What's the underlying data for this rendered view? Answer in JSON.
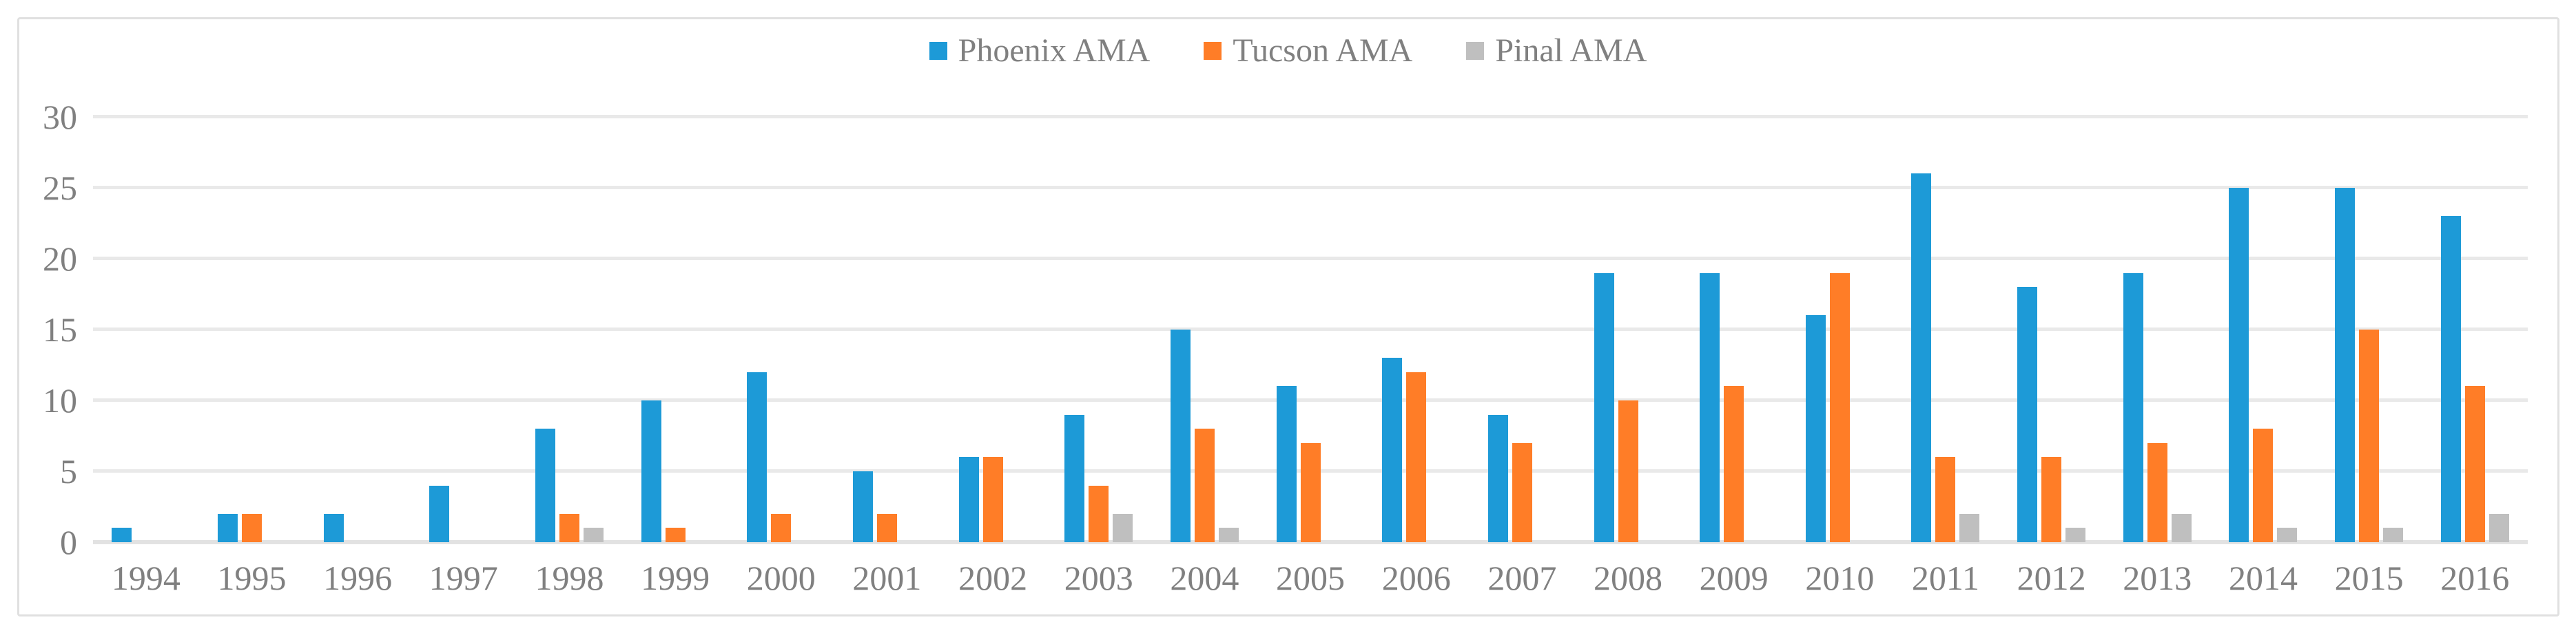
{
  "style": {
    "background": "#ffffff",
    "frame_border_color": "#e0e0e0",
    "gridline_color": "#e9e9e9",
    "axis_line_color": "#e2e2e2",
    "text_color": "#808080"
  },
  "legend": {
    "position": "top-center",
    "items": [
      {
        "label": "Phoenix AMA",
        "color": "#1d9ad7"
      },
      {
        "label": "Tucson AMA",
        "color": "#ff7d27"
      },
      {
        "label": "Pinal AMA",
        "color": "#bfbfbf"
      }
    ]
  },
  "chart_data": {
    "type": "bar",
    "title": "",
    "xlabel": "",
    "ylabel": "",
    "grid": "horizontal",
    "legend_position": "top-center",
    "ylim": [
      0,
      30
    ],
    "yticks": [
      0,
      5,
      10,
      15,
      20,
      25,
      30
    ],
    "categories": [
      "1994",
      "1995",
      "1996",
      "1997",
      "1998",
      "1999",
      "2000",
      "2001",
      "2002",
      "2003",
      "2004",
      "2005",
      "2006",
      "2007",
      "2008",
      "2009",
      "2010",
      "2011",
      "2012",
      "2013",
      "2014",
      "2015",
      "2016"
    ],
    "series": [
      {
        "name": "Phoenix AMA",
        "color": "#1d9ad7",
        "values": [
          1,
          2,
          2,
          4,
          8,
          10,
          12,
          5,
          6,
          9,
          15,
          11,
          13,
          9,
          19,
          19,
          16,
          26,
          18,
          19,
          25,
          25,
          23
        ]
      },
      {
        "name": "Tucson AMA",
        "color": "#ff7d27",
        "values": [
          0,
          2,
          0,
          0,
          2,
          1,
          2,
          2,
          6,
          4,
          8,
          7,
          12,
          7,
          10,
          11,
          19,
          6,
          6,
          7,
          8,
          15,
          11
        ]
      },
      {
        "name": "Pinal AMA",
        "color": "#bfbfbf",
        "values": [
          0,
          0,
          0,
          0,
          1,
          0,
          0,
          0,
          0,
          2,
          1,
          0,
          0,
          0,
          0,
          0,
          0,
          2,
          1,
          2,
          1,
          1,
          2
        ]
      }
    ]
  }
}
